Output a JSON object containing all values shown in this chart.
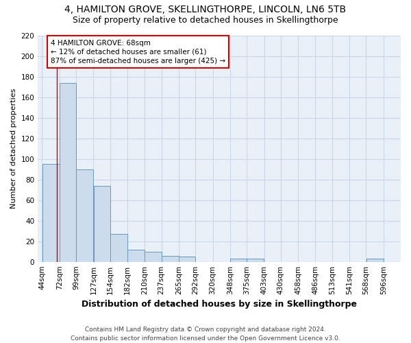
{
  "title1": "4, HAMILTON GROVE, SKELLINGTHORPE, LINCOLN, LN6 5TB",
  "title2": "Size of property relative to detached houses in Skellingthorpe",
  "xlabel": "Distribution of detached houses by size in Skellingthorpe",
  "ylabel": "Number of detached properties",
  "annotation_line1": "4 HAMILTON GROVE: 68sqm",
  "annotation_line2": "← 12% of detached houses are smaller (61)",
  "annotation_line3": "87% of semi-detached houses are larger (425) →",
  "footer1": "Contains HM Land Registry data © Crown copyright and database right 2024.",
  "footer2": "Contains public sector information licensed under the Open Government Licence v3.0.",
  "bar_left_edges": [
    44,
    72,
    99,
    127,
    154,
    182,
    210,
    237,
    265,
    292,
    320,
    348,
    375,
    403,
    430,
    458,
    486,
    513,
    541,
    568
  ],
  "bar_widths": [
    28,
    27,
    28,
    27,
    28,
    28,
    27,
    28,
    27,
    28,
    28,
    27,
    28,
    27,
    28,
    28,
    27,
    28,
    27,
    28
  ],
  "bar_heights": [
    95,
    174,
    90,
    74,
    27,
    12,
    10,
    6,
    5,
    0,
    0,
    3,
    3,
    0,
    0,
    0,
    0,
    0,
    0,
    3
  ],
  "bar_color": "#ccdcec",
  "bar_edgecolor": "#6699bb",
  "grid_color": "#c8d8e8",
  "bg_color": "#eaf0f8",
  "vline_x": 68,
  "vline_color": "#cc0000",
  "annotation_box_color": "#cc0000",
  "ylim": [
    0,
    220
  ],
  "yticks": [
    0,
    20,
    40,
    60,
    80,
    100,
    120,
    140,
    160,
    180,
    200,
    220
  ],
  "tick_labels": [
    "44sqm",
    "72sqm",
    "99sqm",
    "127sqm",
    "154sqm",
    "182sqm",
    "210sqm",
    "237sqm",
    "265sqm",
    "292sqm",
    "320sqm",
    "348sqm",
    "375sqm",
    "403sqm",
    "430sqm",
    "458sqm",
    "486sqm",
    "513sqm",
    "541sqm",
    "568sqm",
    "596sqm"
  ],
  "title1_fontsize": 10,
  "title2_fontsize": 9,
  "xlabel_fontsize": 9,
  "ylabel_fontsize": 8,
  "footer_fontsize": 6.5,
  "tick_fontsize": 7.5
}
